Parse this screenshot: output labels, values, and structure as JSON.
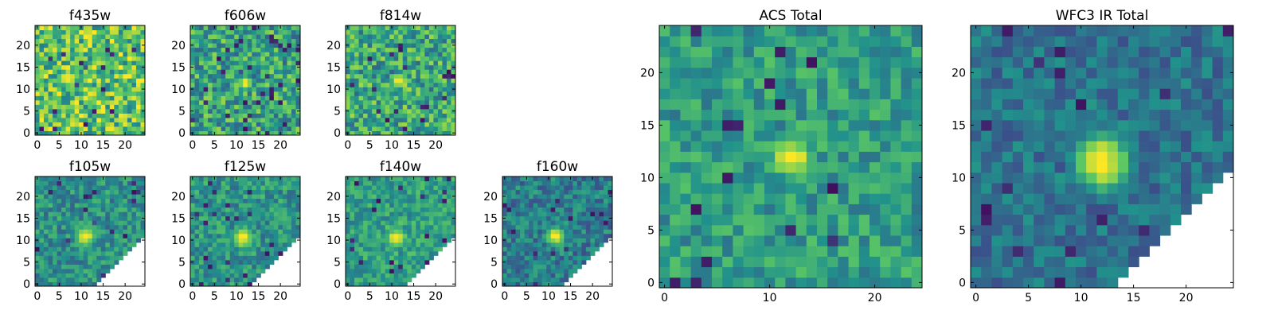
{
  "figure": {
    "colormap": [
      "#440154",
      "#3b528b",
      "#21918c",
      "#5ec962",
      "#fde725"
    ],
    "background": "#ffffff"
  },
  "chart_data": [
    {
      "type": "heatmap",
      "title": "f435w",
      "grid_size": 25,
      "xlim": [
        -0.5,
        24.5
      ],
      "ylim": [
        -0.5,
        24.5
      ],
      "x_ticks": [
        0,
        5,
        10,
        15,
        20
      ],
      "y_ticks": [
        0,
        5,
        10,
        15,
        20
      ],
      "source": {
        "x": 11.5,
        "y": 12.5,
        "peak": 0.8,
        "width": 1.8
      },
      "background_level": 0.72,
      "noise": 0.3,
      "masked": "none",
      "seed": 11
    },
    {
      "type": "heatmap",
      "title": "f606w",
      "grid_size": 25,
      "xlim": [
        -0.5,
        24.5
      ],
      "ylim": [
        -0.5,
        24.5
      ],
      "x_ticks": [
        0,
        5,
        10,
        15,
        20
      ],
      "y_ticks": [
        0,
        5,
        10,
        15,
        20
      ],
      "source": {
        "x": 12,
        "y": 11.5,
        "peak": 0.95,
        "width": 1.6
      },
      "background_level": 0.58,
      "noise": 0.26,
      "masked": "none",
      "seed": 22
    },
    {
      "type": "heatmap",
      "title": "f814w",
      "grid_size": 25,
      "xlim": [
        -0.5,
        24.5
      ],
      "ylim": [
        -0.5,
        24.5
      ],
      "x_ticks": [
        0,
        5,
        10,
        15,
        20
      ],
      "y_ticks": [
        0,
        5,
        10,
        15,
        20
      ],
      "source": {
        "x": 11.5,
        "y": 12,
        "peak": 0.95,
        "width": 1.7
      },
      "background_level": 0.6,
      "noise": 0.26,
      "masked": "none",
      "seed": 33
    },
    {
      "type": "heatmap",
      "title": "f105w",
      "grid_size": 25,
      "xlim": [
        -0.5,
        24.5
      ],
      "ylim": [
        -0.5,
        24.5
      ],
      "x_ticks": [
        0,
        5,
        10,
        15,
        20
      ],
      "y_ticks": [
        0,
        5,
        10,
        15,
        20
      ],
      "source": {
        "x": 11,
        "y": 11,
        "peak": 0.98,
        "width": 2.2
      },
      "background_level": 0.5,
      "noise": 0.18,
      "masked": "lower-right",
      "seed": 44
    },
    {
      "type": "heatmap",
      "title": "f125w",
      "grid_size": 25,
      "xlim": [
        -0.5,
        24.5
      ],
      "ylim": [
        -0.5,
        24.5
      ],
      "x_ticks": [
        0,
        5,
        10,
        15,
        20
      ],
      "y_ticks": [
        0,
        5,
        10,
        15,
        20
      ],
      "source": {
        "x": 11.5,
        "y": 10.5,
        "peak": 0.98,
        "width": 2.3
      },
      "background_level": 0.52,
      "noise": 0.18,
      "masked": "lower-right",
      "seed": 55
    },
    {
      "type": "heatmap",
      "title": "f140w",
      "grid_size": 25,
      "xlim": [
        -0.5,
        24.5
      ],
      "ylim": [
        -0.5,
        24.5
      ],
      "x_ticks": [
        0,
        5,
        10,
        15,
        20
      ],
      "y_ticks": [
        0,
        5,
        10,
        15,
        20
      ],
      "source": {
        "x": 11,
        "y": 10.5,
        "peak": 0.98,
        "width": 2.2
      },
      "background_level": 0.56,
      "noise": 0.16,
      "masked": "lower-right",
      "seed": 66
    },
    {
      "type": "heatmap",
      "title": "f160w",
      "grid_size": 25,
      "xlim": [
        -0.5,
        24.5
      ],
      "ylim": [
        -0.5,
        24.5
      ],
      "x_ticks": [
        0,
        5,
        10,
        15,
        20
      ],
      "y_ticks": [
        0,
        5,
        10,
        15,
        20
      ],
      "source": {
        "x": 11.5,
        "y": 11,
        "peak": 0.98,
        "width": 2.0
      },
      "background_level": 0.42,
      "noise": 0.18,
      "masked": "lower-right",
      "seed": 77
    },
    {
      "type": "heatmap",
      "title": "ACS Total",
      "grid_size": 25,
      "xlim": [
        -0.5,
        24.5
      ],
      "ylim": [
        -0.5,
        24.5
      ],
      "x_ticks": [
        0,
        10,
        20
      ],
      "y_ticks": [
        0,
        5,
        10,
        15,
        20
      ],
      "source": {
        "x": 12,
        "y": 12,
        "peak": 1.0,
        "width": 1.9
      },
      "background_level": 0.55,
      "noise": 0.17,
      "masked": "none",
      "seed": 88
    },
    {
      "type": "heatmap",
      "title": "WFC3 IR Total",
      "grid_size": 25,
      "xlim": [
        -0.5,
        24.5
      ],
      "ylim": [
        -0.5,
        24.5
      ],
      "x_ticks": [
        0,
        5,
        10,
        15,
        20
      ],
      "y_ticks": [
        0,
        5,
        10,
        15,
        20
      ],
      "source": {
        "x": 12,
        "y": 11.5,
        "peak": 1.0,
        "width": 2.4
      },
      "background_level": 0.38,
      "noise": 0.14,
      "masked": "lower-right",
      "seed": 99
    }
  ]
}
